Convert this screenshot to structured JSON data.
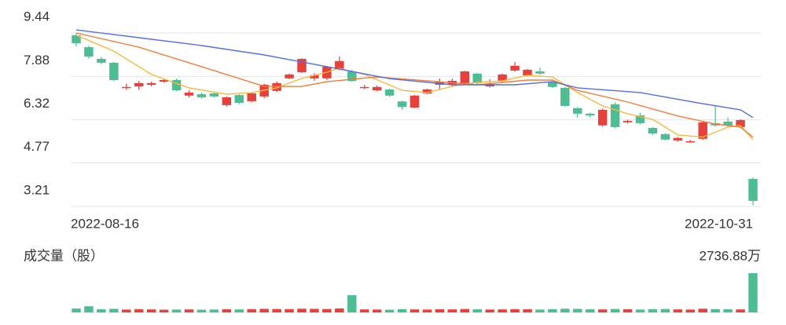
{
  "chart_data": {
    "type": "candlestick",
    "categories": [
      "2022-08-16",
      null,
      null,
      null,
      null,
      null,
      null,
      null,
      null,
      null,
      null,
      null,
      null,
      null,
      null,
      null,
      null,
      null,
      null,
      null,
      null,
      null,
      null,
      null,
      null,
      null,
      null,
      null,
      null,
      null,
      null,
      null,
      null,
      null,
      null,
      null,
      null,
      null,
      null,
      null,
      null,
      null,
      null,
      null,
      null,
      null,
      null,
      null,
      null,
      null,
      null,
      null,
      null,
      null,
      "2022-10-31"
    ],
    "open": [
      9.36,
      8.93,
      8.51,
      8.37,
      7.5,
      7.52,
      7.58,
      7.69,
      7.75,
      7.19,
      7.24,
      7.27,
      6.85,
      7.21,
      6.99,
      7.16,
      7.36,
      7.81,
      8.03,
      7.81,
      7.81,
      8.14,
      8.06,
      7.5,
      7.38,
      7.41,
      6.98,
      6.76,
      7.27,
      7.58,
      7.58,
      7.64,
      7.98,
      7.52,
      7.72,
      8.09,
      7.92,
      8.06,
      7.69,
      7.47,
      6.74,
      6.54,
      6.12,
      6.88,
      6.23,
      6.48,
      6.03,
      5.81,
      5.58,
      5.55,
      5.64,
      6.2,
      6.26,
      6.06,
      4.2
    ],
    "high": [
      9.44,
      8.98,
      8.58,
      8.4,
      7.62,
      7.72,
      7.7,
      7.8,
      7.8,
      7.38,
      7.3,
      7.3,
      7.16,
      7.24,
      7.3,
      7.62,
      7.7,
      7.98,
      8.53,
      8.0,
      8.26,
      8.6,
      8.12,
      7.58,
      7.55,
      7.44,
      7.02,
      7.22,
      7.44,
      7.8,
      7.8,
      8.08,
      8.0,
      7.78,
      7.98,
      8.4,
      8.15,
      8.2,
      7.72,
      7.5,
      6.78,
      6.58,
      6.72,
      6.95,
      6.32,
      6.58,
      6.06,
      5.84,
      5.7,
      5.6,
      6.26,
      6.85,
      6.4,
      6.34,
      4.25
    ],
    "low": [
      8.95,
      8.52,
      8.32,
      7.72,
      7.4,
      7.4,
      7.52,
      7.66,
      7.35,
      7.12,
      7.08,
      7.12,
      6.8,
      6.88,
      6.95,
      7.1,
      7.32,
      7.78,
      8.0,
      7.72,
      7.75,
      8.1,
      7.68,
      7.42,
      7.35,
      7.15,
      6.68,
      6.74,
      7.24,
      7.4,
      7.5,
      7.6,
      7.6,
      7.48,
      7.68,
      8.05,
      7.88,
      7.94,
      7.46,
      6.8,
      6.4,
      6.4,
      6.08,
      6.02,
      6.2,
      6.16,
      5.78,
      5.58,
      5.54,
      5.5,
      5.6,
      6.08,
      6.08,
      6.02,
      3.26
    ],
    "close": [
      9.07,
      8.59,
      8.37,
      7.75,
      7.5,
      7.64,
      7.64,
      7.75,
      7.38,
      7.3,
      7.13,
      7.16,
      7.13,
      6.93,
      7.27,
      7.58,
      7.64,
      7.95,
      8.51,
      7.92,
      8.23,
      8.43,
      7.72,
      7.5,
      7.5,
      7.19,
      6.78,
      7.19,
      7.41,
      7.69,
      7.72,
      8.06,
      7.64,
      7.61,
      7.95,
      8.26,
      8.12,
      7.98,
      7.5,
      6.82,
      6.54,
      6.48,
      6.68,
      6.06,
      6.28,
      6.2,
      5.83,
      5.61,
      5.67,
      5.55,
      6.23,
      6.12,
      6.12,
      6.31,
      3.41
    ],
    "up_color": "#e5413d",
    "down_color": "#4fbd93",
    "lines": [
      {
        "color": "#f5b942",
        "x": [
          0,
          3,
          6,
          9,
          12,
          14,
          16,
          18,
          20,
          21,
          23,
          26,
          28,
          30,
          32,
          34,
          36,
          38,
          40,
          42,
          44,
          46,
          48,
          50,
          52,
          53,
          54
        ],
        "values": [
          9.36,
          8.79,
          7.95,
          7.47,
          7.24,
          7.3,
          7.47,
          7.81,
          8.03,
          8.17,
          7.95,
          7.38,
          7.3,
          7.52,
          7.67,
          7.72,
          7.92,
          7.86,
          7.3,
          6.82,
          6.54,
          6.34,
          5.78,
          5.7,
          6.06,
          6.12,
          5.61
        ]
      },
      {
        "color": "#ef7d3c",
        "x": [
          0,
          5,
          10,
          15,
          18,
          20,
          24,
          28,
          32,
          36,
          38,
          40,
          44,
          48,
          51,
          53,
          54
        ],
        "values": [
          9.44,
          8.93,
          8.23,
          7.52,
          7.52,
          7.69,
          7.86,
          7.72,
          7.58,
          7.75,
          7.75,
          7.38,
          6.96,
          6.46,
          6.17,
          6.06,
          5.7
        ]
      },
      {
        "color": "#5470e0",
        "x": [
          0,
          5,
          10,
          15,
          20,
          25,
          30,
          35,
          38,
          40,
          45,
          50,
          53,
          54
        ],
        "values": [
          9.55,
          9.27,
          8.99,
          8.65,
          8.23,
          7.8,
          7.58,
          7.58,
          7.69,
          7.47,
          7.3,
          6.9,
          6.68,
          6.4
        ]
      }
    ],
    "ylim": [
      3.21,
      9.44
    ],
    "yticks": [
      9.44,
      7.88,
      6.32,
      4.77,
      3.21
    ],
    "grid": true,
    "volume": {
      "title": "成交量（股）",
      "ylim": [
        0,
        2736.88
      ],
      "yticks": [
        {
          "value": 2736.88,
          "label": "2736.88万"
        }
      ],
      "values": [
        270,
        430,
        220,
        250,
        200,
        230,
        210,
        190,
        200,
        210,
        190,
        200,
        220,
        210,
        230,
        250,
        240,
        230,
        260,
        250,
        240,
        280,
        1200,
        210,
        200,
        190,
        230,
        210,
        200,
        220,
        210,
        240,
        220,
        200,
        210,
        230,
        220,
        200,
        230,
        260,
        250,
        220,
        210,
        240,
        220,
        200,
        230,
        240,
        210,
        200,
        260,
        230,
        220,
        210,
        2736.88
      ]
    }
  }
}
